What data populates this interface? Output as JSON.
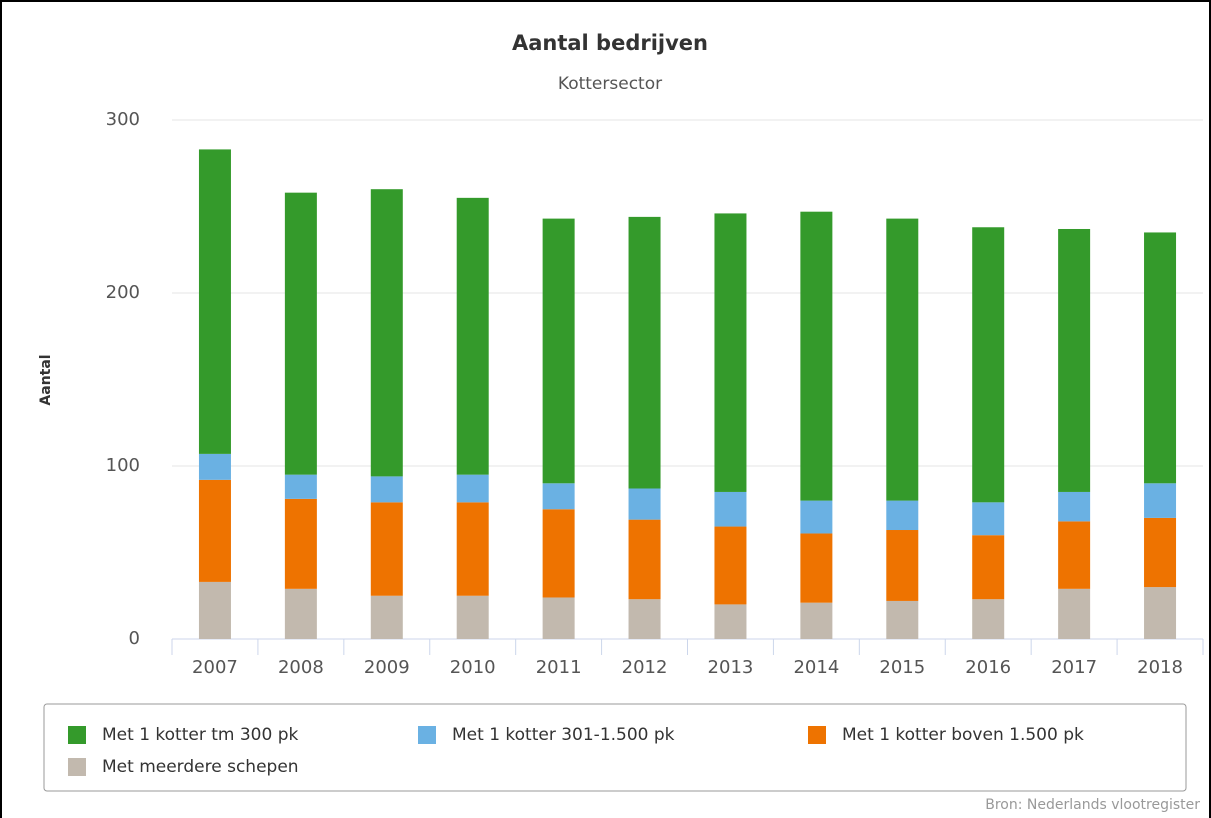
{
  "chart_data": {
    "type": "stacked-bar",
    "title": "Aantal bedrijven",
    "subtitle": "Kottersector",
    "y_label": "Aantal",
    "source": "Bron: Nederlands vlootregister",
    "categories": [
      "2007",
      "2008",
      "2009",
      "2010",
      "2011",
      "2012",
      "2013",
      "2014",
      "2015",
      "2016",
      "2017",
      "2018"
    ],
    "series": [
      {
        "name": "Met 1 kotter tm 300 pk",
        "color": "#349a2b",
        "values": [
          176,
          163,
          166,
          160,
          153,
          157,
          161,
          167,
          163,
          159,
          152,
          145
        ]
      },
      {
        "name": "Met 1 kotter 301-1.500 pk",
        "color": "#6ab1e3",
        "values": [
          15,
          14,
          15,
          16,
          15,
          18,
          20,
          19,
          17,
          19,
          17,
          20
        ]
      },
      {
        "name": "Met 1 kotter boven 1.500 pk",
        "color": "#ee7300",
        "values": [
          59,
          52,
          54,
          54,
          51,
          46,
          45,
          40,
          41,
          37,
          39,
          40
        ]
      },
      {
        "name": "Met meerdere schepen",
        "color": "#c2b9ae",
        "values": [
          33,
          29,
          25,
          25,
          24,
          23,
          20,
          21,
          22,
          23,
          29,
          30
        ]
      }
    ],
    "ylim": [
      0,
      300
    ],
    "yticks": [
      0,
      100,
      200,
      300
    ],
    "grid": true
  }
}
